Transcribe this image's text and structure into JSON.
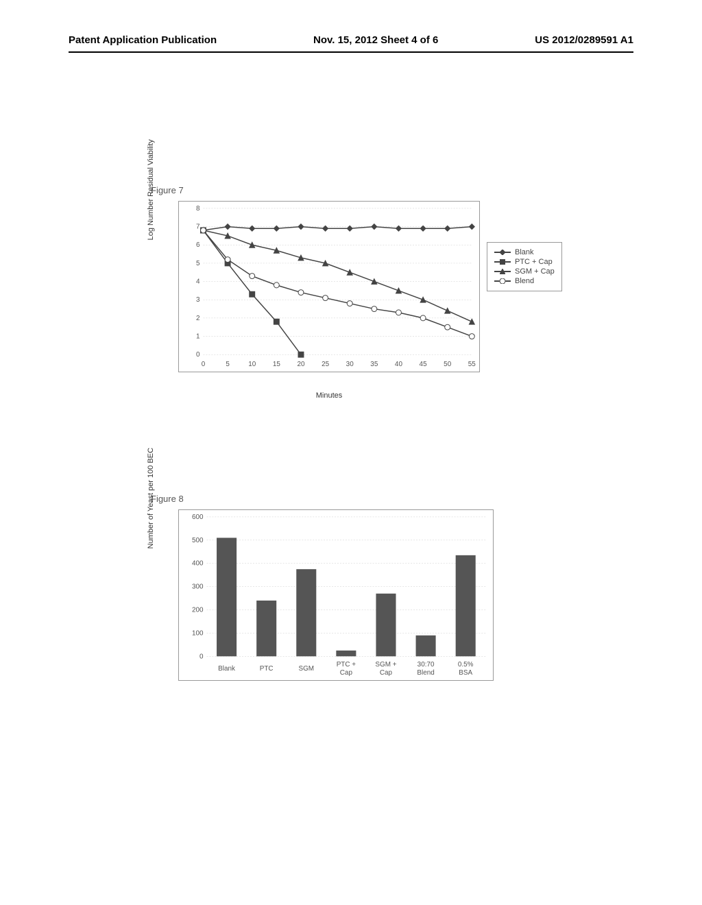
{
  "header": {
    "left": "Patent Application Publication",
    "center": "Nov. 15, 2012  Sheet 4 of 6",
    "right": "US 2012/0289591 A1"
  },
  "figure7": {
    "title": "Figure 7",
    "type": "line",
    "x_label": "Minutes",
    "y_label": "Log Number Residual Viability",
    "x_ticks": [
      0,
      5,
      10,
      15,
      20,
      25,
      30,
      35,
      40,
      45,
      50,
      55
    ],
    "y_ticks": [
      0,
      1,
      2,
      3,
      4,
      5,
      6,
      7,
      8
    ],
    "xlim": [
      0,
      55
    ],
    "ylim": [
      0,
      8
    ],
    "background_color": "#ffffff",
    "grid_color": "#cccccc",
    "axis_color": "#555555",
    "label_fontsize": 11,
    "tick_fontsize": 10,
    "series": [
      {
        "name": "Blank",
        "marker": "diamond",
        "marker_fill": "#444444",
        "color": "#444444",
        "x": [
          0,
          5,
          10,
          15,
          20,
          25,
          30,
          35,
          40,
          45,
          50,
          55
        ],
        "y": [
          6.8,
          7.0,
          6.9,
          6.9,
          7.0,
          6.9,
          6.9,
          7.0,
          6.9,
          6.9,
          6.9,
          7.0
        ]
      },
      {
        "name": "PTC + Cap",
        "marker": "square",
        "marker_fill": "#444444",
        "color": "#444444",
        "x": [
          0,
          5,
          10,
          15,
          20
        ],
        "y": [
          6.8,
          5.0,
          3.3,
          1.8,
          0.0
        ]
      },
      {
        "name": "SGM + Cap",
        "marker": "triangle",
        "marker_fill": "#444444",
        "color": "#444444",
        "x": [
          0,
          5,
          10,
          15,
          20,
          25,
          30,
          35,
          40,
          45,
          50,
          55
        ],
        "y": [
          6.8,
          6.5,
          6.0,
          5.7,
          5.3,
          5.0,
          4.5,
          4.0,
          3.5,
          3.0,
          2.4,
          1.8
        ]
      },
      {
        "name": "Blend",
        "marker": "circle",
        "marker_fill": "#ffffff",
        "color": "#444444",
        "x": [
          0,
          5,
          10,
          15,
          20,
          25,
          30,
          35,
          40,
          45,
          50,
          55
        ],
        "y": [
          6.8,
          5.2,
          4.3,
          3.8,
          3.4,
          3.1,
          2.8,
          2.5,
          2.3,
          2.0,
          1.5,
          1.0
        ]
      }
    ]
  },
  "figure8": {
    "title": "Figure 8",
    "type": "bar",
    "y_label": "Number of Yeast per 100 BEC",
    "y_ticks": [
      0,
      100,
      200,
      300,
      400,
      500,
      600
    ],
    "ylim": [
      0,
      600
    ],
    "background_color": "#ffffff",
    "grid_color": "#cccccc",
    "bar_color": "#555555",
    "bar_width": 0.5,
    "label_fontsize": 11,
    "tick_fontsize": 10,
    "categories": [
      "Blank",
      "PTC",
      "SGM",
      "PTC + Cap",
      "SGM + Cap",
      "30:70 Blend",
      "0.5% BSA"
    ],
    "values": [
      510,
      240,
      375,
      25,
      270,
      90,
      435
    ]
  }
}
